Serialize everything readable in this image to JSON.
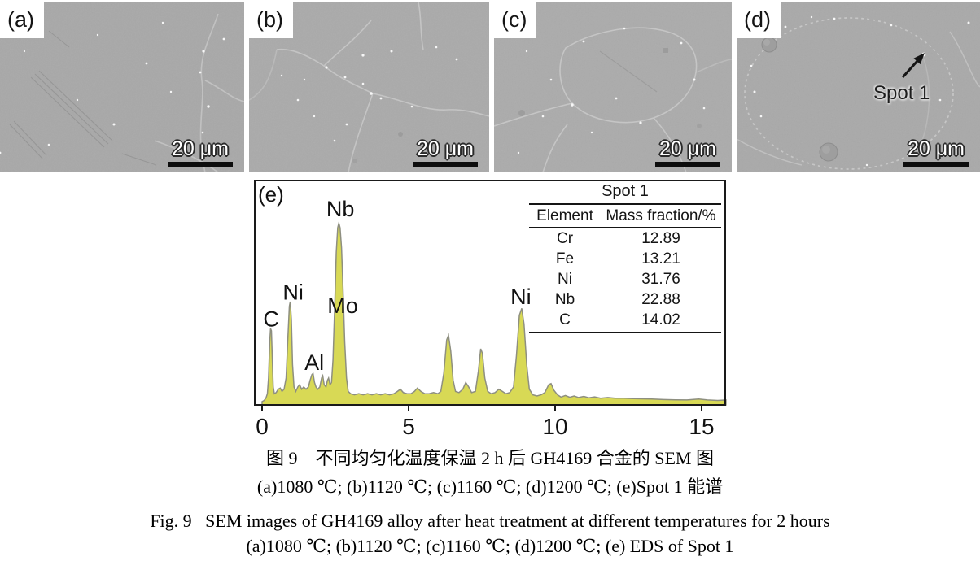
{
  "figure": {
    "panels": [
      {
        "id": "a",
        "label": "(a)",
        "scale_bar": "20 μm"
      },
      {
        "id": "b",
        "label": "(b)",
        "scale_bar": "20 μm"
      },
      {
        "id": "c",
        "label": "(c)",
        "scale_bar": "20 μm"
      },
      {
        "id": "d",
        "label": "(d)",
        "scale_bar": "20 μm",
        "annotation": "Spot 1",
        "annotation_arrow_icon": "arrow-up-right"
      }
    ],
    "spectrum": {
      "label": "(e)"
    },
    "table": {
      "title": "Spot 1",
      "columns": [
        "Element",
        "Mass fraction/%"
      ],
      "rows": [
        [
          "Cr",
          "12.89"
        ],
        [
          "Fe",
          "13.21"
        ],
        [
          "Ni",
          "31.76"
        ],
        [
          "Nb",
          "22.88"
        ],
        [
          "C",
          "14.02"
        ]
      ]
    },
    "captions": {
      "zh_title": "图 9　不同均匀化温度保温 2 h 后 GH4169 合金的 SEM 图",
      "zh_sub": "(a)1080 ℃; (b)1120 ℃; (c)1160 ℃; (d)1200 ℃; (e)Spot 1 能谱",
      "en_title": "Fig. 9   SEM images of GH4169 alloy after heat treatment at different temperatures for 2 hours",
      "en_sub": "(a)1080 ℃; (b)1120 ℃; (c)1160 ℃; (d)1200 ℃; (e) EDS of Spot 1"
    }
  },
  "chart_data": {
    "type": "area",
    "title": "",
    "xlabel": "",
    "ylabel": "",
    "xlim": [
      -0.25,
      15.85
    ],
    "x_ticks": [
      "0",
      "5",
      "10",
      "15"
    ],
    "grid": false,
    "legend": "none",
    "fill_color": "#d8d955",
    "line_color": "#8e8f80",
    "peak_labels": [
      {
        "text": "C",
        "keV": 0.31,
        "label_y": 0.35
      },
      {
        "text": "Ni",
        "keV": 1.06,
        "label_y": 0.47
      },
      {
        "text": "Al",
        "keV": 1.78,
        "label_y": 0.155
      },
      {
        "text": "Nb",
        "keV": 2.67,
        "label_y": 0.84
      },
      {
        "text": "Mo",
        "keV": 2.75,
        "label_y": 0.41
      },
      {
        "text": "Ni",
        "keV": 8.83,
        "label_y": 0.45
      }
    ],
    "trace": [
      [
        0.0,
        0.015
      ],
      [
        0.07,
        0.02
      ],
      [
        0.13,
        0.03
      ],
      [
        0.18,
        0.05
      ],
      [
        0.22,
        0.12
      ],
      [
        0.26,
        0.28
      ],
      [
        0.29,
        0.34
      ],
      [
        0.32,
        0.33
      ],
      [
        0.35,
        0.2
      ],
      [
        0.38,
        0.08
      ],
      [
        0.42,
        0.05
      ],
      [
        0.48,
        0.055
      ],
      [
        0.55,
        0.07
      ],
      [
        0.62,
        0.075
      ],
      [
        0.68,
        0.06
      ],
      [
        0.75,
        0.07
      ],
      [
        0.82,
        0.12
      ],
      [
        0.88,
        0.3
      ],
      [
        0.93,
        0.44
      ],
      [
        0.96,
        0.46
      ],
      [
        1.0,
        0.38
      ],
      [
        1.04,
        0.18
      ],
      [
        1.09,
        0.08
      ],
      [
        1.15,
        0.06
      ],
      [
        1.22,
        0.08
      ],
      [
        1.28,
        0.09
      ],
      [
        1.35,
        0.07
      ],
      [
        1.42,
        0.08
      ],
      [
        1.5,
        0.07
      ],
      [
        1.58,
        0.08
      ],
      [
        1.64,
        0.11
      ],
      [
        1.7,
        0.135
      ],
      [
        1.74,
        0.14
      ],
      [
        1.79,
        0.1
      ],
      [
        1.84,
        0.08
      ],
      [
        1.9,
        0.07
      ],
      [
        1.97,
        0.08
      ],
      [
        2.03,
        0.12
      ],
      [
        2.07,
        0.13
      ],
      [
        2.12,
        0.09
      ],
      [
        2.18,
        0.08
      ],
      [
        2.23,
        0.11
      ],
      [
        2.27,
        0.12
      ],
      [
        2.32,
        0.09
      ],
      [
        2.37,
        0.1
      ],
      [
        2.42,
        0.2
      ],
      [
        2.48,
        0.45
      ],
      [
        2.53,
        0.68
      ],
      [
        2.58,
        0.79
      ],
      [
        2.62,
        0.81
      ],
      [
        2.66,
        0.79
      ],
      [
        2.71,
        0.7
      ],
      [
        2.76,
        0.52
      ],
      [
        2.82,
        0.28
      ],
      [
        2.88,
        0.12
      ],
      [
        2.94,
        0.06
      ],
      [
        3.02,
        0.05
      ],
      [
        3.15,
        0.045
      ],
      [
        3.3,
        0.05
      ],
      [
        3.45,
        0.045
      ],
      [
        3.6,
        0.05
      ],
      [
        3.75,
        0.045
      ],
      [
        3.9,
        0.05
      ],
      [
        4.05,
        0.045
      ],
      [
        4.2,
        0.05
      ],
      [
        4.35,
        0.045
      ],
      [
        4.5,
        0.05
      ],
      [
        4.62,
        0.06
      ],
      [
        4.72,
        0.07
      ],
      [
        4.82,
        0.055
      ],
      [
        4.95,
        0.05
      ],
      [
        5.08,
        0.05
      ],
      [
        5.2,
        0.06
      ],
      [
        5.3,
        0.075
      ],
      [
        5.42,
        0.06
      ],
      [
        5.55,
        0.05
      ],
      [
        5.7,
        0.05
      ],
      [
        5.85,
        0.055
      ],
      [
        6.0,
        0.05
      ],
      [
        6.1,
        0.06
      ],
      [
        6.2,
        0.14
      ],
      [
        6.3,
        0.29
      ],
      [
        6.36,
        0.31
      ],
      [
        6.44,
        0.24
      ],
      [
        6.52,
        0.11
      ],
      [
        6.6,
        0.06
      ],
      [
        6.72,
        0.055
      ],
      [
        6.85,
        0.07
      ],
      [
        6.95,
        0.1
      ],
      [
        7.05,
        0.08
      ],
      [
        7.15,
        0.055
      ],
      [
        7.28,
        0.06
      ],
      [
        7.38,
        0.15
      ],
      [
        7.46,
        0.25
      ],
      [
        7.52,
        0.23
      ],
      [
        7.6,
        0.12
      ],
      [
        7.7,
        0.06
      ],
      [
        7.82,
        0.05
      ],
      [
        7.95,
        0.055
      ],
      [
        8.08,
        0.07
      ],
      [
        8.2,
        0.06
      ],
      [
        8.32,
        0.05
      ],
      [
        8.45,
        0.055
      ],
      [
        8.58,
        0.08
      ],
      [
        8.68,
        0.22
      ],
      [
        8.78,
        0.4
      ],
      [
        8.86,
        0.43
      ],
      [
        8.94,
        0.36
      ],
      [
        9.03,
        0.18
      ],
      [
        9.12,
        0.07
      ],
      [
        9.24,
        0.045
      ],
      [
        9.38,
        0.04
      ],
      [
        9.52,
        0.045
      ],
      [
        9.65,
        0.055
      ],
      [
        9.78,
        0.09
      ],
      [
        9.86,
        0.095
      ],
      [
        9.96,
        0.065
      ],
      [
        10.08,
        0.045
      ],
      [
        10.2,
        0.035
      ],
      [
        10.35,
        0.042
      ],
      [
        10.5,
        0.034
      ],
      [
        10.65,
        0.04
      ],
      [
        10.8,
        0.033
      ],
      [
        10.98,
        0.038
      ],
      [
        11.15,
        0.032
      ],
      [
        11.35,
        0.036
      ],
      [
        11.55,
        0.03
      ],
      [
        11.8,
        0.033
      ],
      [
        12.05,
        0.03
      ],
      [
        12.35,
        0.03
      ],
      [
        12.65,
        0.028
      ],
      [
        12.95,
        0.027
      ],
      [
        13.3,
        0.026
      ],
      [
        13.7,
        0.024
      ],
      [
        14.1,
        0.023
      ],
      [
        14.5,
        0.022
      ],
      [
        14.9,
        0.026
      ],
      [
        15.2,
        0.022
      ],
      [
        15.55,
        0.02
      ],
      [
        15.83,
        0.022
      ]
    ]
  }
}
